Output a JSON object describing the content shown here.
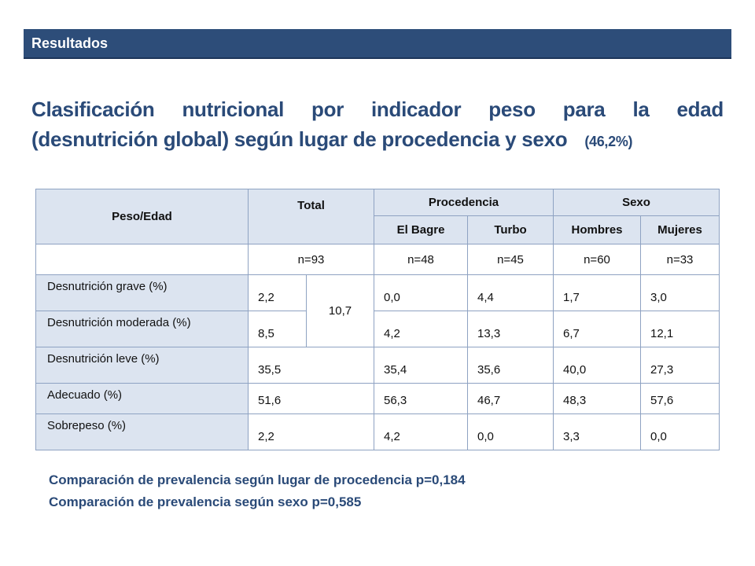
{
  "section": {
    "label": "Resultados"
  },
  "title": {
    "line1_words": [
      "Clasificación",
      "nutricional",
      "por",
      "indicador",
      "peso",
      "para",
      "la",
      "edad"
    ],
    "line2": "(desnutrición global) según lugar de procedencia y sexo",
    "percentage": "(46,2%)"
  },
  "table": {
    "header": {
      "peso_edad": "Peso/Edad",
      "total": "Total",
      "procedencia": "Procedencia",
      "sexo": "Sexo",
      "el_bagre": "El Bagre",
      "turbo": "Turbo",
      "hombres": "Hombres",
      "mujeres": "Mujeres"
    },
    "n": {
      "total": "n=93",
      "el_bagre": "n=48",
      "turbo": "n=45",
      "hombres": "n=60",
      "mujeres": "n=33"
    },
    "merged_total": "10,7",
    "rows": [
      {
        "label": "Desnutrición grave (%)",
        "total": "2,2",
        "el_bagre": "0,0",
        "turbo": "4,4",
        "hombres": "1,7",
        "mujeres": "3,0"
      },
      {
        "label": "Desnutrición moderada (%)",
        "total": "8,5",
        "el_bagre": "4,2",
        "turbo": "13,3",
        "hombres": "6,7",
        "mujeres": "12,1"
      },
      {
        "label": "Desnutrición leve (%)",
        "total": "35,5",
        "el_bagre": "35,4",
        "turbo": "35,6",
        "hombres": "40,0",
        "mujeres": "27,3"
      },
      {
        "label": "Adecuado (%)",
        "total": "51,6",
        "el_bagre": "56,3",
        "turbo": "46,7",
        "hombres": "48,3",
        "mujeres": "57,6"
      },
      {
        "label": "Sobrepeso (%)",
        "total": "2,2",
        "el_bagre": "4,2",
        "turbo": "0,0",
        "hombres": "3,3",
        "mujeres": "0,0"
      }
    ]
  },
  "footnotes": {
    "procedencia": "Comparación de prevalencia según lugar de procedencia p=0,184",
    "sexo": "Comparación de prevalencia según sexo p=0,585"
  },
  "colors": {
    "section_bar": "#2d4d79",
    "title_text": "#2a4a78",
    "header_fill": "#dce4f0",
    "table_border": "#8ea2c2"
  }
}
